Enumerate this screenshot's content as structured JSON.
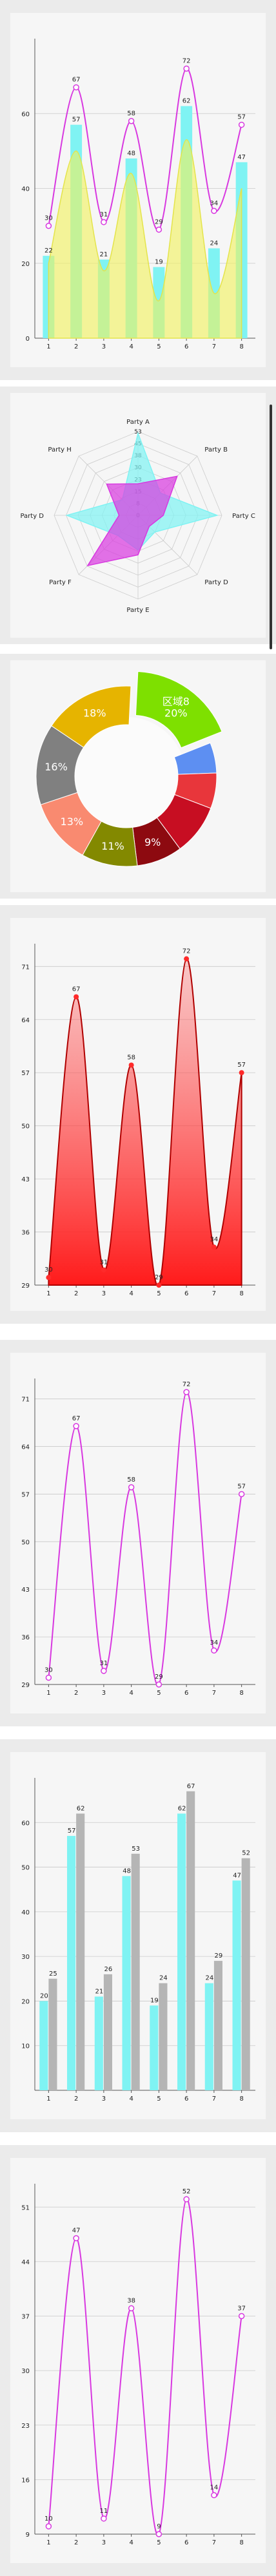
{
  "colors": {
    "cyan": "#7ff3f3",
    "magenta": "#d838e0",
    "yellow": "#f2f25a",
    "red": "#ff2a2a",
    "gray": "#b5b5b5",
    "green": "#7ee000",
    "grid": "#c9c9c9"
  },
  "chart_data": [
    {
      "type": "bar",
      "combo": "bar+line",
      "categories": [
        "1",
        "2",
        "3",
        "4",
        "5",
        "6",
        "7",
        "8"
      ],
      "series": [
        {
          "kind": "bar",
          "values": [
            22,
            57,
            21,
            48,
            19,
            62,
            24,
            47
          ],
          "color": "#7ff3f3"
        },
        {
          "kind": "line",
          "values": [
            30,
            67,
            31,
            58,
            29,
            72,
            34,
            57
          ],
          "color": "#d838e0"
        },
        {
          "kind": "area",
          "values": [
            20,
            50,
            18,
            44,
            10,
            53,
            12,
            40
          ],
          "color": "#f2f25a"
        }
      ],
      "ylim": [
        0,
        80
      ],
      "yticks": [
        "0",
        "20",
        "40",
        "60"
      ],
      "labels_bar": [
        "22",
        "57",
        "21",
        "48",
        "19",
        "62",
        "24",
        "47"
      ],
      "labels_line": [
        "30",
        "67",
        "31",
        "58",
        "29",
        "72",
        "34",
        "57"
      ]
    },
    {
      "type": "radar",
      "axes": [
        "Party A",
        "Party B",
        "Party C",
        "Party D",
        "Party E",
        "Party F",
        "Party D",
        "Party H"
      ],
      "rticks": [
        "0",
        "8",
        "15",
        "23",
        "30",
        "38",
        "45",
        "53"
      ],
      "series": [
        {
          "values": [
            52,
            20,
            50,
            15,
            22,
            18,
            45,
            14
          ],
          "color": "#7ff3f3"
        },
        {
          "values": [
            20,
            35,
            16,
            10,
            25,
            45,
            12,
            28
          ],
          "color": "#d838e0"
        }
      ]
    },
    {
      "type": "pie",
      "donut": true,
      "values": [
        20,
        6,
        7,
        10,
        9,
        11,
        13,
        16,
        18
      ],
      "labels": [
        "区域8\n20%",
        "",
        "",
        "",
        "9%",
        "11%",
        "13%",
        "16%",
        "18%"
      ],
      "colors": [
        "#7ee000",
        "#5d8ff2",
        "#e8363b",
        "#c70e22",
        "#8d0a10",
        "#838900",
        "#f98a70",
        "#808080",
        "#e6b400"
      ]
    },
    {
      "type": "area",
      "categories": [
        "1",
        "2",
        "3",
        "4",
        "5",
        "6",
        "7",
        "8"
      ],
      "values": [
        30,
        67,
        31,
        58,
        29,
        72,
        34,
        57
      ],
      "ylim": [
        29,
        74
      ],
      "yticks": [
        "29",
        "36",
        "43",
        "50",
        "57",
        "64",
        "71"
      ],
      "color": "#ff2a2a"
    },
    {
      "type": "line",
      "categories": [
        "1",
        "2",
        "3",
        "4",
        "5",
        "6",
        "7",
        "8"
      ],
      "values": [
        30,
        67,
        31,
        58,
        29,
        72,
        34,
        57
      ],
      "ylim": [
        29,
        74
      ],
      "yticks": [
        "29",
        "36",
        "43",
        "50",
        "57",
        "64",
        "71"
      ],
      "color": "#d838e0"
    },
    {
      "type": "bar",
      "categories": [
        "1",
        "2",
        "3",
        "4",
        "5",
        "6",
        "7",
        "8"
      ],
      "series": [
        {
          "values": [
            20,
            57,
            21,
            48,
            19,
            62,
            24,
            47
          ],
          "color": "#7ff3f3"
        },
        {
          "values": [
            25,
            62,
            26,
            53,
            24,
            67,
            29,
            52
          ],
          "color": "#b5b5b5"
        }
      ],
      "ylim": [
        0,
        70
      ],
      "yticks": [
        "10",
        "20",
        "30",
        "40",
        "50",
        "60"
      ]
    },
    {
      "type": "line",
      "categories": [
        "1",
        "2",
        "3",
        "4",
        "5",
        "6",
        "7",
        "8"
      ],
      "values": [
        10,
        47,
        11,
        38,
        9,
        52,
        14,
        37
      ],
      "ylim": [
        9,
        54
      ],
      "yticks": [
        "9",
        "16",
        "23",
        "30",
        "37",
        "44",
        "51"
      ],
      "color": "#d838e0"
    }
  ]
}
